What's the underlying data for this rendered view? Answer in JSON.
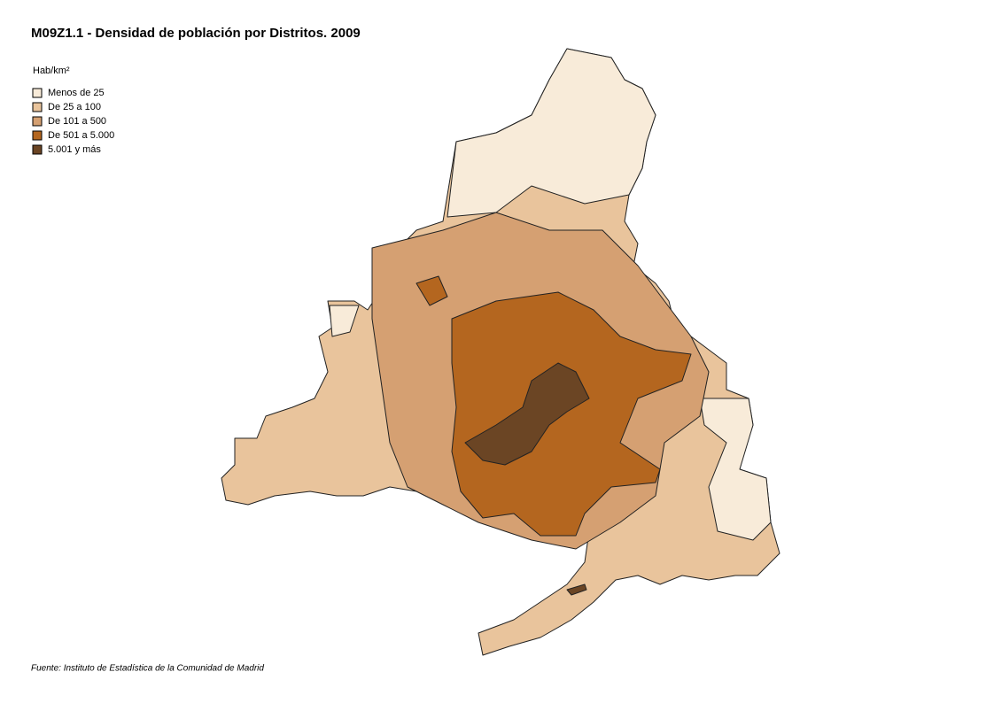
{
  "header": {
    "title": "M09Z1.1 - Densidad de población por Distritos. 2009"
  },
  "legend": {
    "title": "Hab/km²",
    "items": [
      {
        "label": "Menos de 25",
        "color": "#f8ebd9"
      },
      {
        "label": "De 25 a 100",
        "color": "#e9c49c"
      },
      {
        "label": "De 101 a 500",
        "color": "#d5a072"
      },
      {
        "label": "De 501 a 5.000",
        "color": "#b4661f"
      },
      {
        "label": "5.001 y más",
        "color": "#6b4524"
      }
    ]
  },
  "footer": {
    "source": "Fuente: Instituto de Estadística de la Comunidad de Madrid"
  }
}
